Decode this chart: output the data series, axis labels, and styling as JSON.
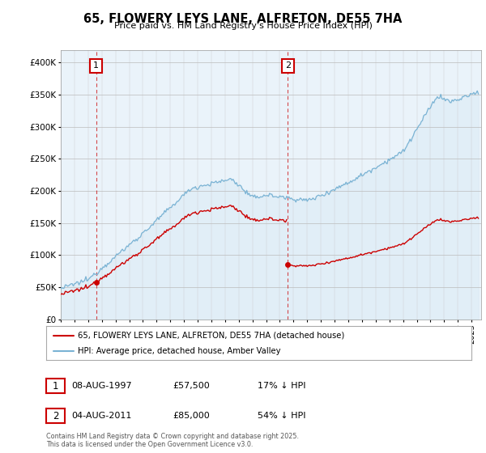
{
  "title": "65, FLOWERY LEYS LANE, ALFRETON, DE55 7HA",
  "subtitle": "Price paid vs. HM Land Registry's House Price Index (HPI)",
  "legend_line1": "65, FLOWERY LEYS LANE, ALFRETON, DE55 7HA (detached house)",
  "legend_line2": "HPI: Average price, detached house, Amber Valley",
  "annotation1_label": "1",
  "annotation1_date": "08-AUG-1997",
  "annotation1_price": "£57,500",
  "annotation1_hpi": "17% ↓ HPI",
  "annotation2_label": "2",
  "annotation2_date": "04-AUG-2011",
  "annotation2_price": "£85,000",
  "annotation2_hpi": "54% ↓ HPI",
  "footer": "Contains HM Land Registry data © Crown copyright and database right 2025.\nThis data is licensed under the Open Government Licence v3.0.",
  "sale1_year": 1997.58,
  "sale1_price": 57500,
  "sale2_year": 2011.58,
  "sale2_price": 85000,
  "hpi_color": "#7ab3d4",
  "hpi_fill_color": "#daeaf5",
  "price_color": "#cc0000",
  "vline_color": "#cc0000",
  "ylim": [
    0,
    420000
  ],
  "yticks": [
    0,
    50000,
    100000,
    150000,
    200000,
    250000,
    300000,
    350000,
    400000
  ],
  "background_color": "#ffffff",
  "plot_bg_color": "#eaf3fa"
}
